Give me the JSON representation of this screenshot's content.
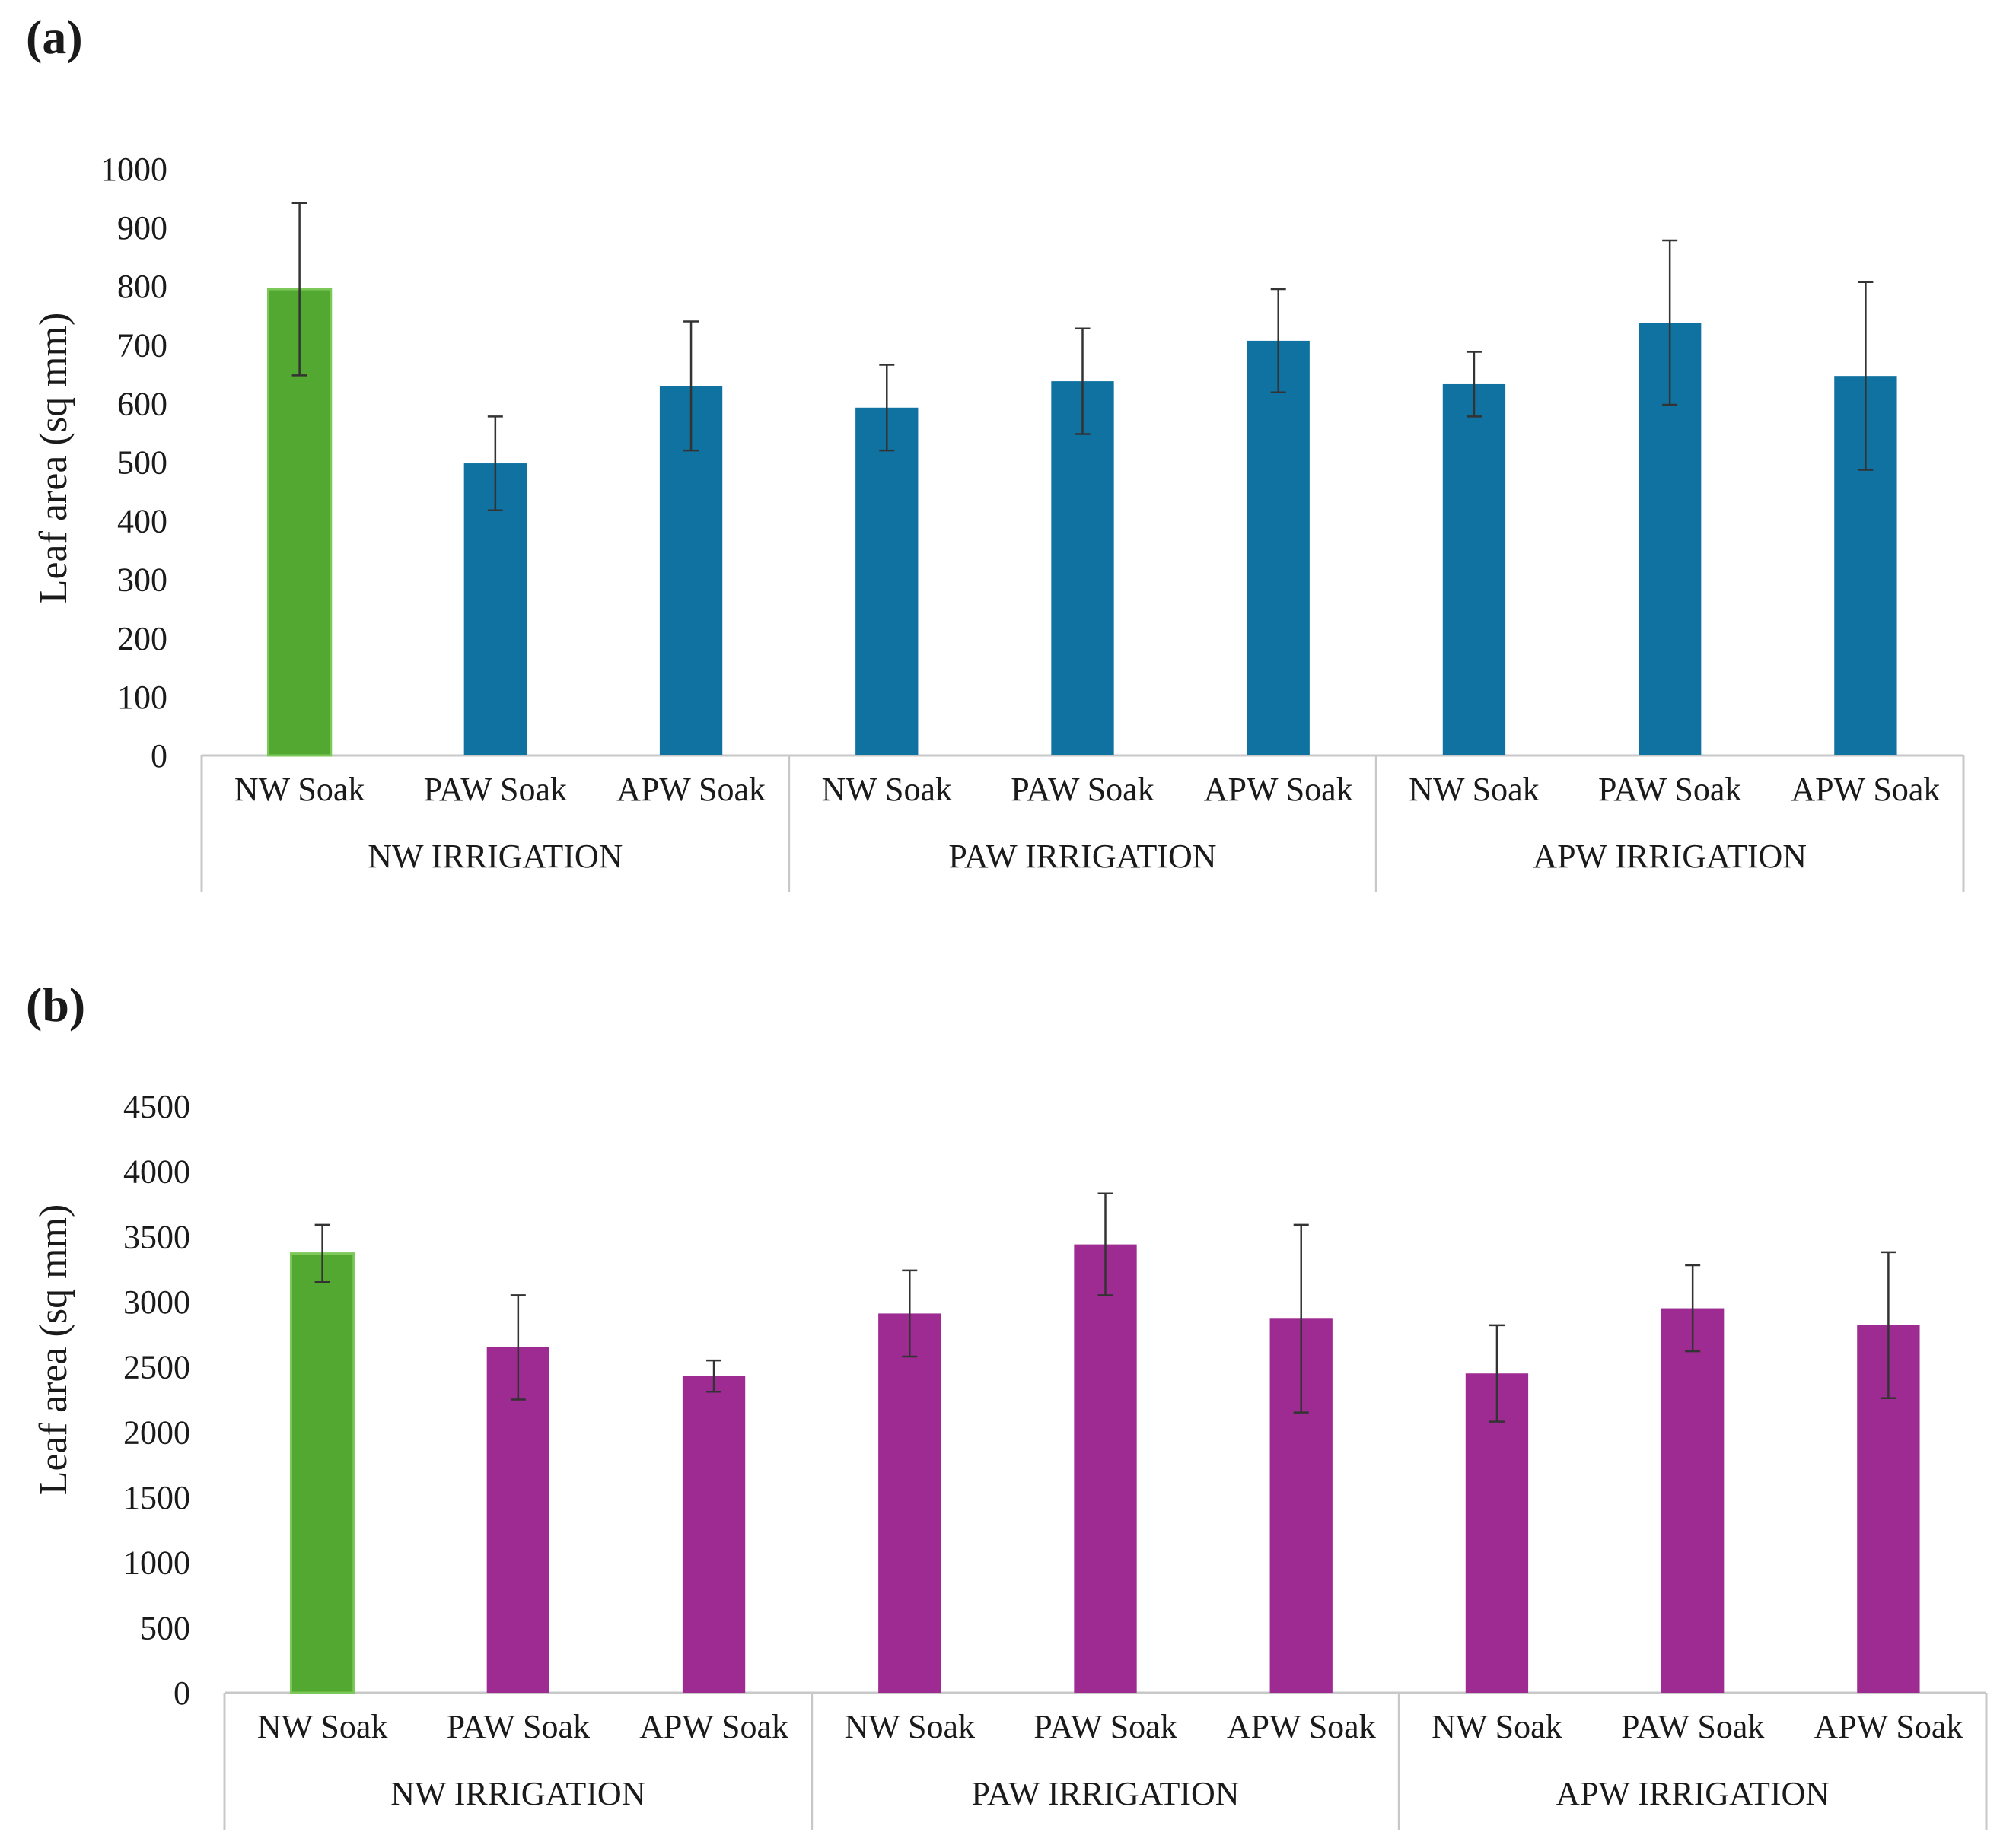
{
  "chart_data": [
    {
      "panel": "(a)",
      "type": "bar",
      "ylabel": "Leaf area (sq mm)",
      "ylim": [
        0,
        1000
      ],
      "yticks": [
        "0",
        "100",
        "200",
        "300",
        "400",
        "500",
        "600",
        "700",
        "800",
        "900",
        "1000"
      ],
      "groups": [
        "NW IRRIGATION",
        "PAW IRRIGATION",
        "APW IRRIGATION"
      ],
      "categories": [
        "NW Soak",
        "PAW Soak",
        "APW Soak",
        "NW Soak",
        "PAW Soak",
        "APW Soak",
        "NW Soak",
        "PAW Soak",
        "APW Soak"
      ],
      "values": [
        795,
        498,
        630,
        593,
        638,
        707,
        633,
        738,
        647
      ],
      "errors": [
        147,
        80,
        110,
        73,
        90,
        88,
        55,
        140,
        160
      ],
      "colors": [
        "#53a832",
        "#0f72a0",
        "#0f72a0",
        "#0f72a0",
        "#0f72a0",
        "#0f72a0",
        "#0f72a0",
        "#0f72a0",
        "#0f72a0"
      ],
      "grid": false
    },
    {
      "panel": "(b)",
      "type": "bar",
      "ylabel": "Leaf area (sq mm)",
      "ylim": [
        0,
        4500
      ],
      "yticks": [
        "0",
        "500",
        "1000",
        "1500",
        "2000",
        "2500",
        "3000",
        "3500",
        "4000",
        "4500"
      ],
      "groups": [
        "NW IRRIGATION",
        "PAW IRRIGATION",
        "APW IRRIGATION"
      ],
      "categories": [
        "NW Soak",
        "PAW Soak",
        "APW Soak",
        "NW Soak",
        "PAW Soak",
        "APW Soak",
        "NW Soak",
        "PAW Soak",
        "APW Soak"
      ],
      "values": [
        3370,
        2650,
        2430,
        2910,
        3440,
        2870,
        2450,
        2950,
        2820
      ],
      "errors": [
        220,
        400,
        120,
        330,
        390,
        720,
        370,
        330,
        560
      ],
      "colors": [
        "#53a832",
        "#9e2b92",
        "#9e2b92",
        "#9e2b92",
        "#9e2b92",
        "#9e2b92",
        "#9e2b92",
        "#9e2b92",
        "#9e2b92"
      ],
      "grid": false
    }
  ]
}
